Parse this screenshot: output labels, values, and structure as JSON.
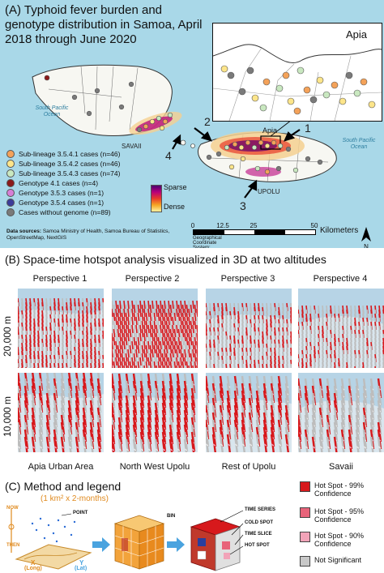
{
  "panel_a": {
    "title": "(A) Typhoid fever burden and genotype distribution in Samoa, April 2018 through June 2020",
    "inset_label": "Apia",
    "ocean_label_left": "South Pacific Ocean",
    "ocean_label_right": "South Pacific Ocean",
    "savaii_label": "SAVAII",
    "upolu_label": "UPOLU",
    "apia_label": "Apia",
    "arrows": [
      "1",
      "2",
      "3",
      "4"
    ],
    "legend": [
      {
        "label": "Sub-lineage 3.5.4.1 cases (n=46)",
        "color": "#f4a259"
      },
      {
        "label": "Sub-lineage 3.5.4.2 cases (n=46)",
        "color": "#fde58a"
      },
      {
        "label": "Sub-lineage 3.5.4.3 cases (n=74)",
        "color": "#c9e8c0"
      },
      {
        "label": "Genotype 4.1 cases (n=4)",
        "color": "#8b1a1a"
      },
      {
        "label": "Genotype 3.5.3 cases (n=1)",
        "color": "#d67fd6"
      },
      {
        "label": "Genotype 3.5.4 cases (n=1)",
        "color": "#3c3c9a"
      },
      {
        "label": "Cases without genome (n=89)",
        "color": "#7a7a7a"
      }
    ],
    "density": {
      "top": "Sparse",
      "bottom": "Dense"
    },
    "sources_bold": "Data sources:",
    "sources_text": "Samoa Ministry of Health, Samoa Bureau of Statistics, OpenStreetMap, NextGIS",
    "scale": {
      "ticks": [
        "0",
        "12.5",
        "25",
        "50"
      ],
      "unit": "Kilometers"
    },
    "coord_system": "Geographical Coordinate System: WGS 1984",
    "north": "N"
  },
  "panel_b": {
    "title": "(B) Space-time hotspot analysis visualized in 3D at two altitudes",
    "perspectives": [
      "Perspective 1",
      "Perspective 2",
      "Perspective 3",
      "Perspective 4"
    ],
    "altitudes": [
      "20,000 m",
      "10,000 m"
    ],
    "regions": [
      "Apia Urban Area",
      "North West Upolu",
      "Rest of Upolu",
      "Savaii"
    ]
  },
  "panel_c": {
    "title": "(C) Method and legend",
    "subtitle": "(1 km² x 2-months)",
    "axis_now": "NOW",
    "axis_then": "THEN",
    "x_label": "X",
    "x_sub": "(Long)",
    "y_label": "Y",
    "y_sub": "(Lat)",
    "point_label": "POINT",
    "bin_label": "BIN",
    "time_series": "TIME SERIES",
    "cold_spot": "COLD SPOT",
    "time_slice": "TIME SLICE",
    "hot_spot": "HOT SPOT",
    "legend": [
      {
        "label": "Hot Spot - 99% Confidence",
        "color": "#d7191c"
      },
      {
        "label": "Hot Spot - 95% Confidence",
        "color": "#e8637a"
      },
      {
        "label": "Hot Spot - 90% Confidence",
        "color": "#f2a3b8"
      },
      {
        "label": "Not Significant",
        "color": "#c8c8c8"
      }
    ]
  }
}
